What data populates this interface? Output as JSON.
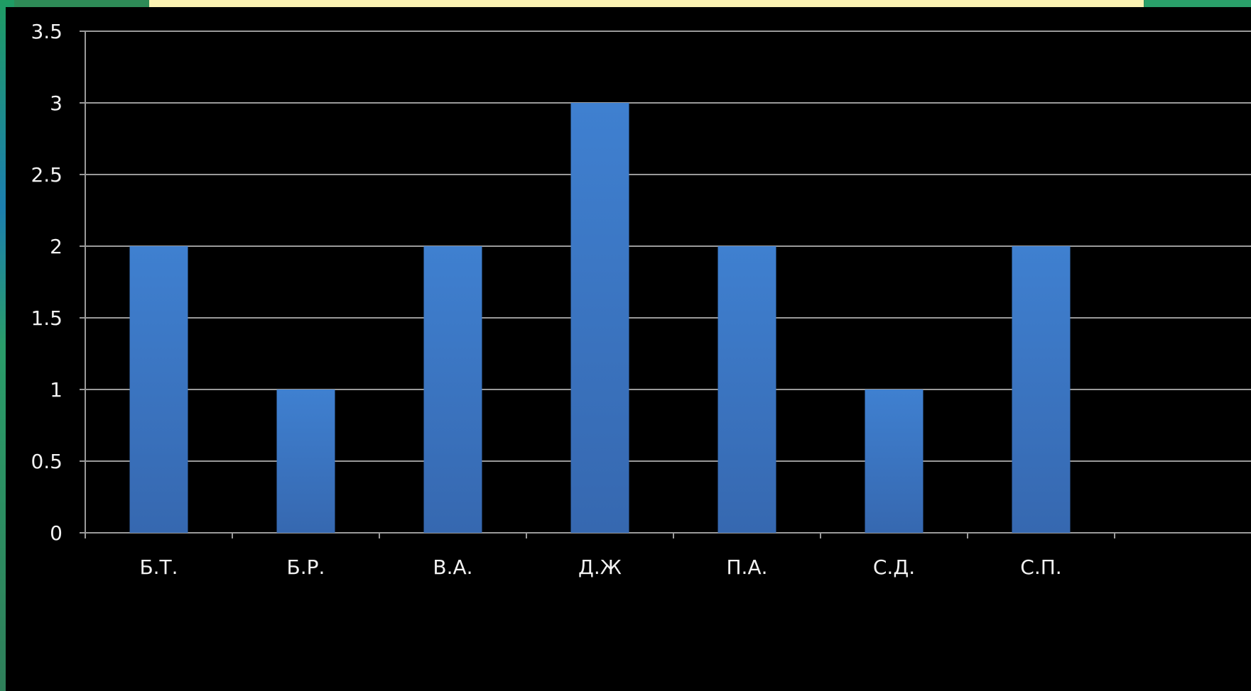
{
  "chart_data": {
    "type": "bar",
    "categories": [
      "Б.Т.",
      "Б.Р.",
      "В.А.",
      "Д.Ж",
      "П.А.",
      "С.Д.",
      "С.П."
    ],
    "values": [
      2,
      1,
      2,
      3,
      2,
      1,
      2
    ],
    "yticks": [
      "0",
      "0.5",
      "1",
      "1.5",
      "2",
      "2.5",
      "3",
      "3.5"
    ],
    "ylim": [
      0,
      3.5
    ],
    "grid": true,
    "legend": "none",
    "colors": {
      "bar_top": "#3f80d0",
      "bar_bottom": "#3668b0",
      "background": "#000000",
      "grid": "#9a9a9a",
      "text": "#f2f2f2"
    }
  }
}
